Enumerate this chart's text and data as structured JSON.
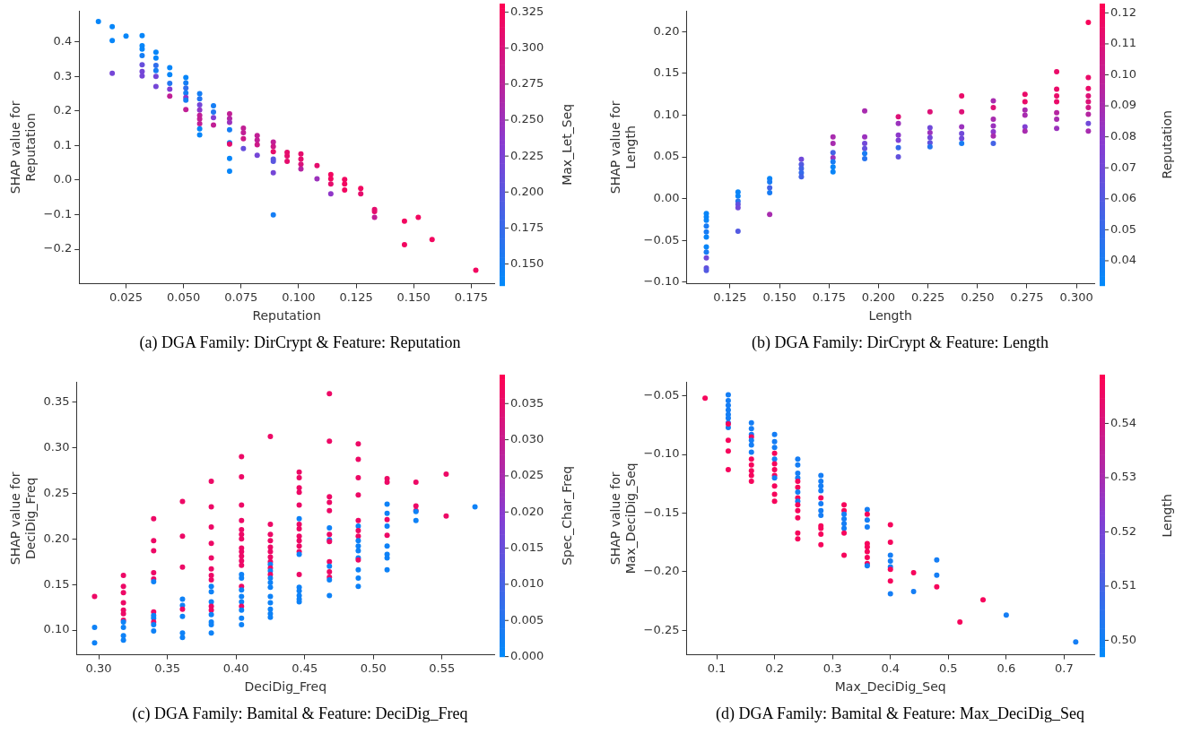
{
  "chart_data": [
    {
      "type": "scatter",
      "title": "(a) DGA Family: DirCrypt & Feature: Reputation",
      "xlabel": "Reputation",
      "ylabel": "SHAP value for\nReputation",
      "clabel": "Max_Let_Seq",
      "x": [
        0.013,
        0.019,
        0.019,
        0.019,
        0.025,
        0.032,
        0.032,
        0.032,
        0.032,
        0.032,
        0.032,
        0.032,
        0.038,
        0.038,
        0.038,
        0.038,
        0.038,
        0.038,
        0.044,
        0.044,
        0.044,
        0.044,
        0.044,
        0.051,
        0.051,
        0.051,
        0.051,
        0.051,
        0.051,
        0.051,
        0.057,
        0.057,
        0.057,
        0.057,
        0.057,
        0.057,
        0.057,
        0.057,
        0.057,
        0.063,
        0.063,
        0.063,
        0.063,
        0.07,
        0.07,
        0.07,
        0.07,
        0.07,
        0.07,
        0.07,
        0.07,
        0.076,
        0.076,
        0.076,
        0.076,
        0.082,
        0.082,
        0.082,
        0.082,
        0.089,
        0.089,
        0.089,
        0.089,
        0.089,
        0.089,
        0.089,
        0.095,
        0.095,
        0.095,
        0.101,
        0.101,
        0.101,
        0.101,
        0.108,
        0.108,
        0.114,
        0.114,
        0.114,
        0.114,
        0.12,
        0.12,
        0.12,
        0.127,
        0.127,
        0.133,
        0.133,
        0.133,
        0.146,
        0.146,
        0.152,
        0.158,
        0.177
      ],
      "values": [
        0.459,
        0.444,
        0.404,
        0.309,
        0.417,
        0.418,
        0.389,
        0.379,
        0.36,
        0.334,
        0.314,
        0.301,
        0.37,
        0.353,
        0.332,
        0.317,
        0.3,
        0.271,
        0.325,
        0.305,
        0.28,
        0.263,
        0.243,
        0.297,
        0.281,
        0.266,
        0.252,
        0.239,
        0.231,
        0.204,
        0.25,
        0.235,
        0.218,
        0.203,
        0.187,
        0.177,
        0.163,
        0.148,
        0.131,
        0.215,
        0.197,
        0.181,
        0.159,
        0.192,
        0.178,
        0.167,
        0.146,
        0.108,
        0.104,
        0.063,
        0.026,
        0.15,
        0.137,
        0.12,
        0.091,
        0.129,
        0.116,
        0.102,
        0.072,
        0.11,
        0.097,
        0.082,
        0.061,
        0.054,
        0.021,
        -0.101,
        0.08,
        0.07,
        0.054,
        0.076,
        0.061,
        0.046,
        0.032,
        0.042,
        0.004,
        0.016,
        0.004,
        -0.011,
        -0.04,
        0.002,
        -0.011,
        -0.029,
        -0.024,
        -0.04,
        -0.085,
        -0.091,
        -0.108,
        -0.119,
        -0.187,
        -0.108,
        -0.172,
        -0.261
      ],
      "cvalues": [
        0.14,
        0.14,
        0.14,
        0.22,
        0.14,
        0.14,
        0.14,
        0.14,
        0.15,
        0.21,
        0.22,
        0.22,
        0.14,
        0.14,
        0.17,
        0.15,
        0.22,
        0.22,
        0.14,
        0.14,
        0.16,
        0.23,
        0.28,
        0.14,
        0.15,
        0.17,
        0.15,
        0.24,
        0.15,
        0.28,
        0.15,
        0.16,
        0.22,
        0.24,
        0.28,
        0.28,
        0.28,
        0.14,
        0.14,
        0.15,
        0.16,
        0.23,
        0.28,
        0.28,
        0.27,
        0.25,
        0.15,
        0.15,
        0.31,
        0.14,
        0.14,
        0.28,
        0.28,
        0.29,
        0.21,
        0.28,
        0.28,
        0.29,
        0.22,
        0.28,
        0.29,
        0.31,
        0.2,
        0.2,
        0.22,
        0.15,
        0.31,
        0.31,
        0.31,
        0.31,
        0.31,
        0.3,
        0.27,
        0.31,
        0.25,
        0.32,
        0.32,
        0.31,
        0.24,
        0.32,
        0.32,
        0.32,
        0.32,
        0.31,
        0.31,
        0.31,
        0.28,
        0.32,
        0.32,
        0.32,
        0.32,
        0.32
      ],
      "xlim": [
        0.0046,
        0.185
      ],
      "ylim": [
        -0.3,
        0.49
      ],
      "clim": [
        0.135,
        0.331
      ],
      "xticks": [
        {
          "value": 0.025,
          "label": "0.025"
        },
        {
          "value": 0.05,
          "label": "0.050"
        },
        {
          "value": 0.075,
          "label": "0.075"
        },
        {
          "value": 0.1,
          "label": "0.100"
        },
        {
          "value": 0.125,
          "label": "0.125"
        },
        {
          "value": 0.15,
          "label": "0.150"
        },
        {
          "value": 0.175,
          "label": "0.175"
        }
      ],
      "yticks": [
        {
          "value": -0.2,
          "label": "−0.2"
        },
        {
          "value": -0.1,
          "label": "−0.1"
        },
        {
          "value": 0,
          "label": "0.0"
        },
        {
          "value": 0.1,
          "label": "0.1"
        },
        {
          "value": 0.2,
          "label": "0.2"
        },
        {
          "value": 0.3,
          "label": "0.3"
        },
        {
          "value": 0.4,
          "label": "0.4"
        }
      ],
      "cticks": [
        {
          "value": 0.15,
          "label": "0.150"
        },
        {
          "value": 0.175,
          "label": "0.175"
        },
        {
          "value": 0.2,
          "label": "0.200"
        },
        {
          "value": 0.225,
          "label": "0.225"
        },
        {
          "value": 0.25,
          "label": "0.250"
        },
        {
          "value": 0.275,
          "label": "0.275"
        },
        {
          "value": 0.3,
          "label": "0.300"
        },
        {
          "value": 0.325,
          "label": "0.325"
        }
      ]
    },
    {
      "type": "scatter",
      "title": "(b) DGA Family: DirCrypt & Feature: Length",
      "xlabel": "Length",
      "ylabel": "SHAP value for\nLength",
      "clabel": "Reputation",
      "x": [
        0.113,
        0.113,
        0.113,
        0.113,
        0.113,
        0.113,
        0.113,
        0.113,
        0.113,
        0.113,
        0.113,
        0.129,
        0.129,
        0.129,
        0.129,
        0.129,
        0.129,
        0.145,
        0.145,
        0.145,
        0.145,
        0.145,
        0.161,
        0.161,
        0.161,
        0.161,
        0.161,
        0.177,
        0.177,
        0.177,
        0.177,
        0.177,
        0.177,
        0.177,
        0.193,
        0.193,
        0.193,
        0.193,
        0.193,
        0.193,
        0.21,
        0.21,
        0.21,
        0.21,
        0.21,
        0.21,
        0.226,
        0.226,
        0.226,
        0.226,
        0.226,
        0.226,
        0.242,
        0.242,
        0.242,
        0.242,
        0.242,
        0.242,
        0.258,
        0.258,
        0.258,
        0.258,
        0.258,
        0.258,
        0.258,
        0.274,
        0.274,
        0.274,
        0.274,
        0.274,
        0.274,
        0.29,
        0.29,
        0.29,
        0.29,
        0.29,
        0.29,
        0.29,
        0.306,
        0.306,
        0.306,
        0.306,
        0.306,
        0.306,
        0.306,
        0.306,
        0.306
      ],
      "values": [
        -0.018,
        -0.022,
        -0.026,
        -0.033,
        -0.04,
        -0.046,
        -0.058,
        -0.064,
        -0.071,
        -0.083,
        -0.086,
        0.008,
        0.003,
        -0.003,
        -0.007,
        -0.011,
        -0.039,
        0.024,
        0.02,
        0.013,
        0.007,
        -0.019,
        0.047,
        0.041,
        0.036,
        0.031,
        0.026,
        0.074,
        0.066,
        0.055,
        0.049,
        0.044,
        0.038,
        0.032,
        0.105,
        0.074,
        0.066,
        0.06,
        0.054,
        0.048,
        0.098,
        0.09,
        0.076,
        0.07,
        0.061,
        0.05,
        0.104,
        0.085,
        0.079,
        0.073,
        0.067,
        0.062,
        0.123,
        0.104,
        0.086,
        0.078,
        0.072,
        0.066,
        0.117,
        0.109,
        0.095,
        0.087,
        0.08,
        0.075,
        0.066,
        0.125,
        0.116,
        0.106,
        0.1,
        0.086,
        0.081,
        0.152,
        0.131,
        0.123,
        0.116,
        0.103,
        0.095,
        0.084,
        0.211,
        0.145,
        0.132,
        0.123,
        0.116,
        0.109,
        0.101,
        0.09,
        0.081
      ],
      "cvalues": [
        0.035,
        0.035,
        0.035,
        0.04,
        0.04,
        0.035,
        0.035,
        0.04,
        0.07,
        0.065,
        0.06,
        0.035,
        0.035,
        0.045,
        0.065,
        0.07,
        0.06,
        0.035,
        0.04,
        0.055,
        0.04,
        0.09,
        0.07,
        0.06,
        0.055,
        0.05,
        0.055,
        0.09,
        0.09,
        0.055,
        0.085,
        0.04,
        0.035,
        0.035,
        0.09,
        0.085,
        0.07,
        0.065,
        0.04,
        0.045,
        0.11,
        0.085,
        0.08,
        0.075,
        0.05,
        0.065,
        0.11,
        0.07,
        0.085,
        0.07,
        0.065,
        0.045,
        0.115,
        0.11,
        0.085,
        0.07,
        0.07,
        0.04,
        0.09,
        0.11,
        0.09,
        0.085,
        0.08,
        0.09,
        0.055,
        0.115,
        0.115,
        0.09,
        0.09,
        0.075,
        0.09,
        0.115,
        0.115,
        0.115,
        0.115,
        0.095,
        0.09,
        0.085,
        0.12,
        0.115,
        0.115,
        0.11,
        0.11,
        0.105,
        0.095,
        0.07,
        0.09
      ],
      "xlim": [
        0.103,
        0.309
      ],
      "ylim": [
        -0.102,
        0.225
      ],
      "clim": [
        0.032,
        0.123
      ],
      "xticks": [
        {
          "value": 0.125,
          "label": "0.125"
        },
        {
          "value": 0.15,
          "label": "0.150"
        },
        {
          "value": 0.175,
          "label": "0.175"
        },
        {
          "value": 0.2,
          "label": "0.200"
        },
        {
          "value": 0.225,
          "label": "0.225"
        },
        {
          "value": 0.25,
          "label": "0.250"
        },
        {
          "value": 0.275,
          "label": "0.275"
        },
        {
          "value": 0.3,
          "label": "0.300"
        }
      ],
      "yticks": [
        {
          "value": -0.1,
          "label": "−0.10"
        },
        {
          "value": -0.05,
          "label": "−0.05"
        },
        {
          "value": 0,
          "label": "0.00"
        },
        {
          "value": 0.05,
          "label": "0.05"
        },
        {
          "value": 0.1,
          "label": "0.10"
        },
        {
          "value": 0.15,
          "label": "0.15"
        },
        {
          "value": 0.2,
          "label": "0.20"
        }
      ],
      "cticks": [
        {
          "value": 0.04,
          "label": "0.04"
        },
        {
          "value": 0.05,
          "label": "0.05"
        },
        {
          "value": 0.06,
          "label": "0.06"
        },
        {
          "value": 0.07,
          "label": "0.07"
        },
        {
          "value": 0.08,
          "label": "0.08"
        },
        {
          "value": 0.09,
          "label": "0.09"
        },
        {
          "value": 0.1,
          "label": "0.10"
        },
        {
          "value": 0.11,
          "label": "0.11"
        },
        {
          "value": 0.12,
          "label": "0.12"
        }
      ]
    },
    {
      "type": "scatter",
      "title": "(c) DGA Family: Bamital & Feature: DeciDig_Freq",
      "xlabel": "DeciDig_Freq",
      "ylabel": "SHAP value for\nDeciDig_Freq",
      "clabel": "Spec_Char_Freq",
      "x": [
        0.297,
        0.297,
        0.297,
        0.318,
        0.318,
        0.318,
        0.318,
        0.318,
        0.318,
        0.318,
        0.318,
        0.318,
        0.318,
        0.318,
        0.34,
        0.34,
        0.34,
        0.34,
        0.34,
        0.34,
        0.34,
        0.34,
        0.34,
        0.34,
        0.34,
        0.34,
        0.361,
        0.361,
        0.361,
        0.361,
        0.361,
        0.361,
        0.361,
        0.361,
        0.361,
        0.382,
        0.382,
        0.382,
        0.382,
        0.382,
        0.382,
        0.382,
        0.382,
        0.382,
        0.382,
        0.382,
        0.382,
        0.382,
        0.382,
        0.382,
        0.382,
        0.382,
        0.404,
        0.404,
        0.404,
        0.404,
        0.404,
        0.404,
        0.404,
        0.404,
        0.404,
        0.404,
        0.404,
        0.404,
        0.404,
        0.404,
        0.404,
        0.404,
        0.404,
        0.404,
        0.404,
        0.404,
        0.404,
        0.404,
        0.425,
        0.425,
        0.425,
        0.425,
        0.425,
        0.425,
        0.425,
        0.425,
        0.425,
        0.425,
        0.425,
        0.425,
        0.425,
        0.425,
        0.425,
        0.425,
        0.425,
        0.425,
        0.425,
        0.425,
        0.446,
        0.446,
        0.446,
        0.446,
        0.446,
        0.446,
        0.446,
        0.446,
        0.446,
        0.446,
        0.446,
        0.446,
        0.446,
        0.446,
        0.446,
        0.446,
        0.446,
        0.446,
        0.446,
        0.468,
        0.468,
        0.468,
        0.468,
        0.468,
        0.468,
        0.468,
        0.468,
        0.468,
        0.468,
        0.468,
        0.468,
        0.468,
        0.468,
        0.468,
        0.489,
        0.489,
        0.489,
        0.489,
        0.489,
        0.489,
        0.489,
        0.489,
        0.489,
        0.489,
        0.489,
        0.489,
        0.489,
        0.489,
        0.489,
        0.489,
        0.51,
        0.51,
        0.51,
        0.51,
        0.51,
        0.51,
        0.51,
        0.51,
        0.51,
        0.51,
        0.51,
        0.531,
        0.531,
        0.531,
        0.531,
        0.531,
        0.553,
        0.553,
        0.574
      ],
      "values": [
        0.137,
        0.103,
        0.086,
        0.16,
        0.148,
        0.141,
        0.13,
        0.122,
        0.118,
        0.111,
        0.109,
        0.103,
        0.094,
        0.089,
        0.222,
        0.198,
        0.187,
        0.163,
        0.156,
        0.153,
        0.12,
        0.116,
        0.113,
        0.109,
        0.106,
        0.099,
        0.241,
        0.203,
        0.169,
        0.134,
        0.127,
        0.123,
        0.115,
        0.097,
        0.092,
        0.263,
        0.235,
        0.213,
        0.195,
        0.179,
        0.167,
        0.16,
        0.155,
        0.148,
        0.142,
        0.131,
        0.126,
        0.122,
        0.117,
        0.109,
        0.106,
        0.097,
        0.29,
        0.268,
        0.237,
        0.22,
        0.21,
        0.205,
        0.2,
        0.19,
        0.186,
        0.181,
        0.176,
        0.171,
        0.161,
        0.157,
        0.148,
        0.144,
        0.137,
        0.131,
        0.126,
        0.122,
        0.113,
        0.106,
        0.312,
        0.216,
        0.205,
        0.198,
        0.191,
        0.186,
        0.18,
        0.175,
        0.172,
        0.168,
        0.165,
        0.161,
        0.157,
        0.152,
        0.147,
        0.137,
        0.13,
        0.123,
        0.118,
        0.114,
        0.273,
        0.267,
        0.256,
        0.251,
        0.237,
        0.222,
        0.216,
        0.211,
        0.203,
        0.198,
        0.192,
        0.186,
        0.183,
        0.161,
        0.147,
        0.143,
        0.138,
        0.134,
        0.131,
        0.359,
        0.307,
        0.246,
        0.24,
        0.231,
        0.212,
        0.205,
        0.199,
        0.197,
        0.175,
        0.17,
        0.164,
        0.158,
        0.155,
        0.138,
        0.304,
        0.287,
        0.267,
        0.248,
        0.22,
        0.214,
        0.209,
        0.203,
        0.198,
        0.192,
        0.187,
        0.179,
        0.177,
        0.166,
        0.157,
        0.148,
        0.266,
        0.262,
        0.238,
        0.228,
        0.221,
        0.214,
        0.204,
        0.192,
        0.183,
        0.179,
        0.166,
        0.262,
        0.236,
        0.231,
        0.23,
        0.22,
        0.271,
        0.225,
        0.235
      ],
      "cvalues": [
        0.036,
        0.002,
        0.002,
        0.036,
        0.036,
        0.036,
        0.036,
        0.036,
        0.036,
        0.036,
        0.002,
        0.002,
        0.002,
        0.002,
        0.036,
        0.036,
        0.036,
        0.036,
        0.036,
        0.002,
        0.036,
        0.002,
        0.002,
        0.036,
        0.002,
        0.002,
        0.036,
        0.036,
        0.036,
        0.002,
        0.002,
        0.036,
        0.002,
        0.002,
        0.002,
        0.036,
        0.036,
        0.036,
        0.036,
        0.036,
        0.036,
        0.036,
        0.036,
        0.002,
        0.002,
        0.002,
        0.036,
        0.036,
        0.002,
        0.002,
        0.002,
        0.002,
        0.036,
        0.036,
        0.036,
        0.036,
        0.036,
        0.036,
        0.036,
        0.036,
        0.036,
        0.036,
        0.036,
        0.036,
        0.002,
        0.002,
        0.036,
        0.002,
        0.002,
        0.002,
        0.036,
        0.002,
        0.002,
        0.002,
        0.036,
        0.036,
        0.036,
        0.036,
        0.036,
        0.036,
        0.036,
        0.036,
        0.002,
        0.036,
        0.002,
        0.036,
        0.002,
        0.002,
        0.002,
        0.002,
        0.002,
        0.002,
        0.002,
        0.002,
        0.036,
        0.036,
        0.036,
        0.036,
        0.036,
        0.002,
        0.036,
        0.036,
        0.036,
        0.036,
        0.036,
        0.036,
        0.002,
        0.036,
        0.002,
        0.002,
        0.002,
        0.002,
        0.002,
        0.036,
        0.036,
        0.036,
        0.036,
        0.036,
        0.002,
        0.036,
        0.002,
        0.036,
        0.036,
        0.002,
        0.036,
        0.036,
        0.002,
        0.002,
        0.036,
        0.036,
        0.036,
        0.036,
        0.036,
        0.002,
        0.036,
        0.036,
        0.002,
        0.002,
        0.002,
        0.002,
        0.036,
        0.002,
        0.002,
        0.002,
        0.036,
        0.036,
        0.002,
        0.002,
        0.036,
        0.002,
        0.036,
        0.002,
        0.002,
        0.002,
        0.002,
        0.036,
        0.036,
        0.036,
        0.002,
        0.002,
        0.036,
        0.036,
        0.002
      ],
      "xlim": [
        0.284,
        0.588
      ],
      "ylim": [
        0.073,
        0.372
      ],
      "clim": [
        0,
        0.039
      ],
      "xticks": [
        {
          "value": 0.3,
          "label": "0.30"
        },
        {
          "value": 0.35,
          "label": "0.35"
        },
        {
          "value": 0.4,
          "label": "0.40"
        },
        {
          "value": 0.45,
          "label": "0.45"
        },
        {
          "value": 0.5,
          "label": "0.50"
        },
        {
          "value": 0.55,
          "label": "0.55"
        }
      ],
      "yticks": [
        {
          "value": 0.1,
          "label": "0.10"
        },
        {
          "value": 0.15,
          "label": "0.15"
        },
        {
          "value": 0.2,
          "label": "0.20"
        },
        {
          "value": 0.25,
          "label": "0.25"
        },
        {
          "value": 0.3,
          "label": "0.30"
        },
        {
          "value": 0.35,
          "label": "0.35"
        }
      ],
      "cticks": [
        {
          "value": 0,
          "label": "0.000"
        },
        {
          "value": 0.005,
          "label": "0.005"
        },
        {
          "value": 0.01,
          "label": "0.010"
        },
        {
          "value": 0.015,
          "label": "0.015"
        },
        {
          "value": 0.02,
          "label": "0.020"
        },
        {
          "value": 0.025,
          "label": "0.025"
        },
        {
          "value": 0.03,
          "label": "0.030"
        },
        {
          "value": 0.035,
          "label": "0.035"
        }
      ]
    },
    {
      "type": "scatter",
      "title": "(d) DGA Family: Bamital & Feature: Max_DeciDig_Seq",
      "xlabel": "Max_DeciDig_Seq",
      "ylabel": "SHAP value for\nMax_DeciDig_Seq",
      "clabel": "Length",
      "x": [
        0.08,
        0.12,
        0.12,
        0.12,
        0.12,
        0.12,
        0.12,
        0.12,
        0.12,
        0.12,
        0.12,
        0.12,
        0.12,
        0.16,
        0.16,
        0.16,
        0.16,
        0.16,
        0.16,
        0.16,
        0.16,
        0.16,
        0.16,
        0.16,
        0.16,
        0.2,
        0.2,
        0.2,
        0.2,
        0.2,
        0.2,
        0.2,
        0.2,
        0.2,
        0.2,
        0.2,
        0.2,
        0.24,
        0.24,
        0.24,
        0.24,
        0.24,
        0.24,
        0.24,
        0.24,
        0.24,
        0.24,
        0.24,
        0.24,
        0.24,
        0.24,
        0.28,
        0.28,
        0.28,
        0.28,
        0.28,
        0.28,
        0.28,
        0.28,
        0.28,
        0.28,
        0.28,
        0.28,
        0.32,
        0.32,
        0.32,
        0.32,
        0.32,
        0.32,
        0.32,
        0.32,
        0.36,
        0.36,
        0.36,
        0.36,
        0.36,
        0.36,
        0.36,
        0.36,
        0.36,
        0.36,
        0.4,
        0.4,
        0.4,
        0.4,
        0.4,
        0.4,
        0.4,
        0.4,
        0.44,
        0.44,
        0.48,
        0.48,
        0.48,
        0.52,
        0.56,
        0.6,
        0.72
      ],
      "values": [
        -0.052,
        -0.049,
        -0.054,
        -0.058,
        -0.062,
        -0.066,
        -0.069,
        -0.073,
        -0.077,
        -0.074,
        -0.088,
        -0.097,
        -0.113,
        -0.073,
        -0.078,
        -0.083,
        -0.085,
        -0.088,
        -0.092,
        -0.098,
        -0.104,
        -0.109,
        -0.114,
        -0.118,
        -0.123,
        -0.083,
        -0.089,
        -0.094,
        -0.099,
        -0.104,
        -0.108,
        -0.113,
        -0.118,
        -0.12,
        -0.127,
        -0.134,
        -0.14,
        -0.104,
        -0.109,
        -0.116,
        -0.12,
        -0.123,
        -0.128,
        -0.132,
        -0.137,
        -0.14,
        -0.143,
        -0.148,
        -0.154,
        -0.167,
        -0.172,
        -0.118,
        -0.123,
        -0.127,
        -0.131,
        -0.137,
        -0.142,
        -0.148,
        -0.152,
        -0.161,
        -0.163,
        -0.168,
        -0.177,
        -0.143,
        -0.148,
        -0.151,
        -0.155,
        -0.159,
        -0.163,
        -0.167,
        -0.186,
        -0.147,
        -0.151,
        -0.156,
        -0.162,
        -0.176,
        -0.179,
        -0.183,
        -0.188,
        -0.193,
        -0.195,
        -0.16,
        -0.175,
        -0.186,
        -0.191,
        -0.196,
        -0.198,
        -0.208,
        -0.219,
        -0.201,
        -0.217,
        -0.19,
        -0.203,
        -0.213,
        -0.243,
        -0.224,
        -0.237,
        -0.26
      ],
      "cvalues": [
        0.547,
        0.501,
        0.501,
        0.501,
        0.501,
        0.501,
        0.501,
        0.501,
        0.501,
        0.547,
        0.547,
        0.547,
        0.547,
        0.501,
        0.501,
        0.501,
        0.547,
        0.501,
        0.501,
        0.501,
        0.547,
        0.547,
        0.547,
        0.547,
        0.547,
        0.501,
        0.501,
        0.501,
        0.547,
        0.501,
        0.547,
        0.547,
        0.547,
        0.501,
        0.547,
        0.547,
        0.547,
        0.501,
        0.501,
        0.501,
        0.501,
        0.547,
        0.547,
        0.501,
        0.547,
        0.501,
        0.547,
        0.547,
        0.547,
        0.547,
        0.547,
        0.501,
        0.501,
        0.501,
        0.501,
        0.547,
        0.501,
        0.501,
        0.501,
        0.547,
        0.547,
        0.547,
        0.547,
        0.547,
        0.547,
        0.501,
        0.501,
        0.501,
        0.501,
        0.547,
        0.547,
        0.501,
        0.547,
        0.501,
        0.501,
        0.547,
        0.547,
        0.547,
        0.547,
        0.547,
        0.501,
        0.547,
        0.547,
        0.501,
        0.501,
        0.501,
        0.547,
        0.547,
        0.501,
        0.547,
        0.501,
        0.501,
        0.501,
        0.547,
        0.547,
        0.547,
        0.501,
        0.501
      ],
      "xlim": [
        0.048,
        0.752
      ],
      "ylim": [
        -0.271,
        -0.038
      ],
      "clim": [
        0.497,
        0.549
      ],
      "xticks": [
        0.1,
        0.2,
        0.3,
        0.4,
        0.5,
        0.6,
        0.7
      ],
      "yticks": [
        {
          "value": -0.25,
          "label": "−0.25"
        },
        {
          "value": -0.2,
          "label": "−0.20"
        },
        {
          "value": -0.15,
          "label": "−0.15"
        },
        {
          "value": -0.1,
          "label": "−0.10"
        },
        {
          "value": -0.05,
          "label": "−0.05"
        }
      ],
      "cticks": [
        {
          "value": 0.5,
          "label": "0.50"
        },
        {
          "value": 0.51,
          "label": "0.51"
        },
        {
          "value": 0.52,
          "label": "0.52"
        },
        {
          "value": 0.53,
          "label": "0.53"
        },
        {
          "value": 0.54,
          "label": "0.54"
        }
      ]
    }
  ]
}
